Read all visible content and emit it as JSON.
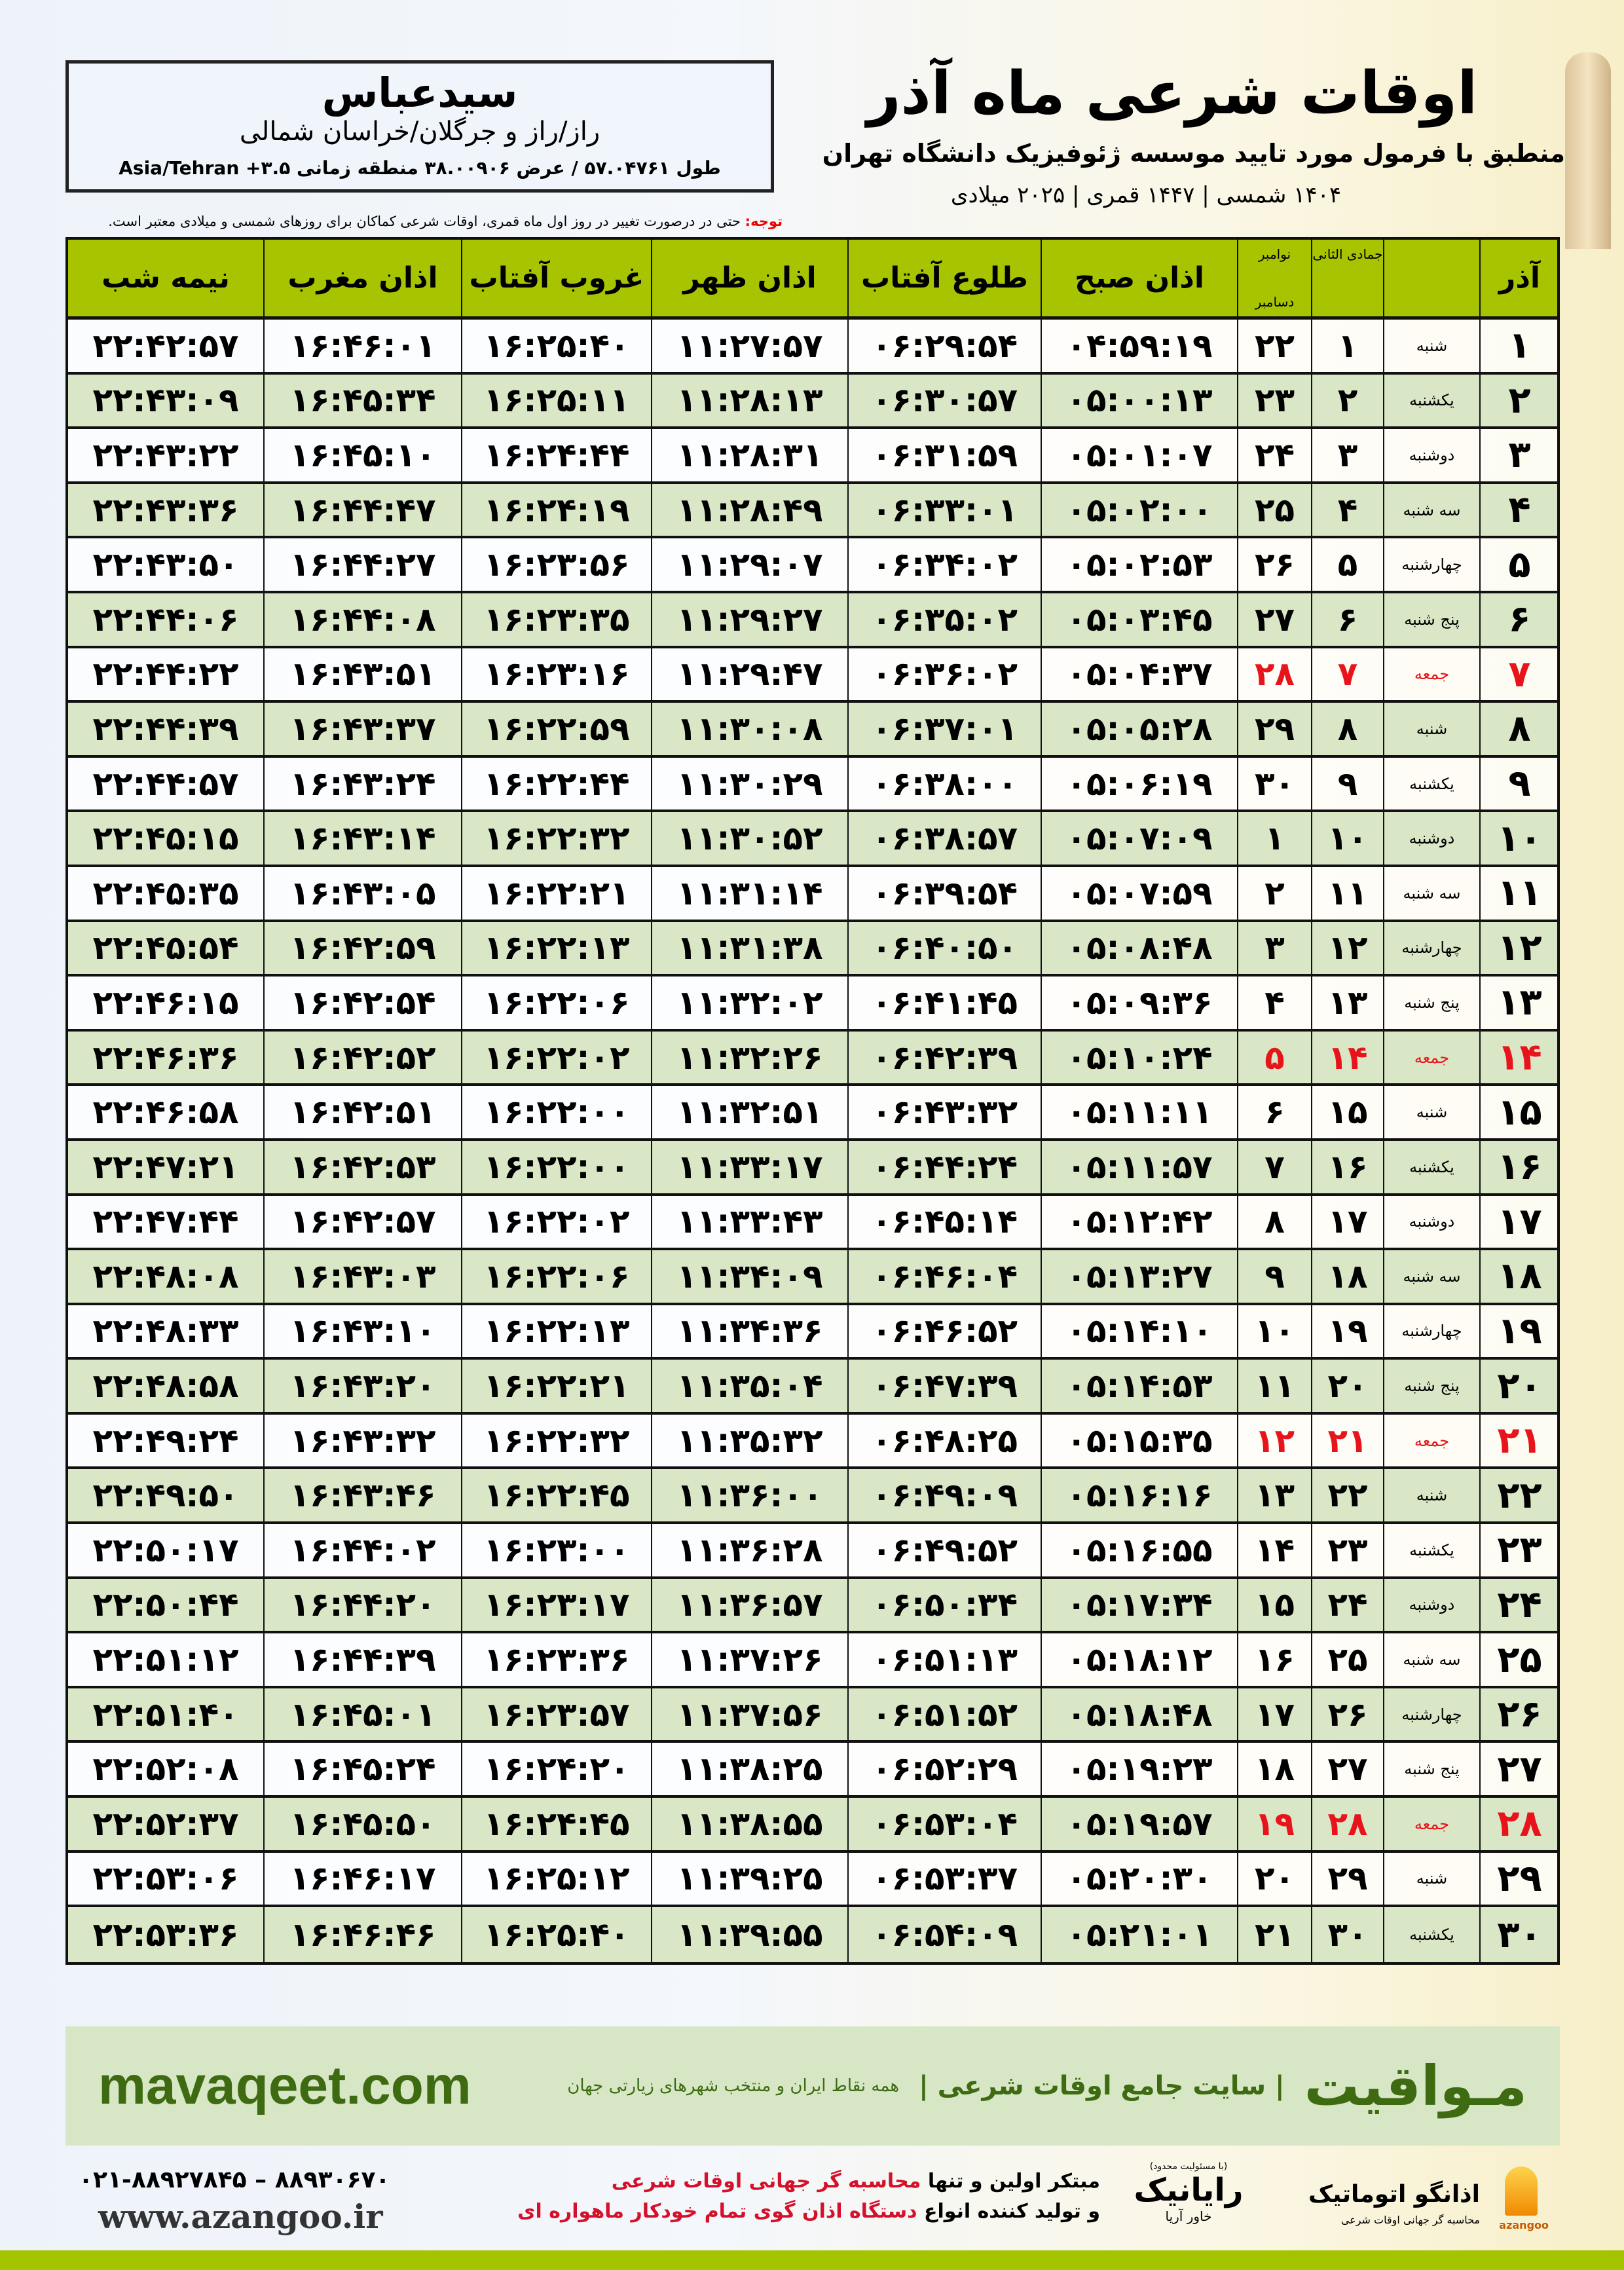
{
  "header": {
    "title": "اوقات شرعی ماه آذر",
    "subtitle": "منطبق با فرمول مورد تایید موسسه ژئوفیزیک دانشگاه تهران",
    "years": "۱۴۰۴ شمسی | ۱۴۴۷ قمری | ۲۰۲۵ میلادی"
  },
  "location": {
    "city": "سیدعباس",
    "region": "راز/راز و جرگلان/خراسان شمالی",
    "coords": "طول ۵۷.۰۴۷۶۱ / عرض ۳۸.۰۰۹۰۶ منطقه زمانی ۳.۵+ Asia/Tehran"
  },
  "note": {
    "label": "توجه:",
    "text": " حتی در درصورت تغییر در روز اول ماه قمری، اوقات شرعی کماکان برای روزهای شمسی و میلادی معتبر است."
  },
  "table": {
    "headers": {
      "day": "آذر",
      "qamari": "جمادی الثانی",
      "miladi_top": "نوامبر",
      "miladi_bottom": "دسامبر",
      "fajr": "اذان صبح",
      "sunrise": "طلوع آفتاب",
      "dhuhr": "اذان ظهر",
      "sunset": "غروب آفتاب",
      "maghrib": "اذان مغرب",
      "midnight": "نیمه شب"
    },
    "friday_color": "#e8141b",
    "header_color": "#a8c400",
    "rows": [
      [
        "۱",
        "شنبه",
        "۱",
        "۲۲",
        "۰۴:۵۹:۱۹",
        "۰۶:۲۹:۵۴",
        "۱۱:۲۷:۵۷",
        "۱۶:۲۵:۴۰",
        "۱۶:۴۶:۰۱",
        "۲۲:۴۲:۵۷"
      ],
      [
        "۲",
        "یکشنبه",
        "۲",
        "۲۳",
        "۰۵:۰۰:۱۳",
        "۰۶:۳۰:۵۷",
        "۱۱:۲۸:۱۳",
        "۱۶:۲۵:۱۱",
        "۱۶:۴۵:۳۴",
        "۲۲:۴۳:۰۹"
      ],
      [
        "۳",
        "دوشنبه",
        "۳",
        "۲۴",
        "۰۵:۰۱:۰۷",
        "۰۶:۳۱:۵۹",
        "۱۱:۲۸:۳۱",
        "۱۶:۲۴:۴۴",
        "۱۶:۴۵:۱۰",
        "۲۲:۴۳:۲۲"
      ],
      [
        "۴",
        "سه شنبه",
        "۴",
        "۲۵",
        "۰۵:۰۲:۰۰",
        "۰۶:۳۳:۰۱",
        "۱۱:۲۸:۴۹",
        "۱۶:۲۴:۱۹",
        "۱۶:۴۴:۴۷",
        "۲۲:۴۳:۳۶"
      ],
      [
        "۵",
        "چهارشنبه",
        "۵",
        "۲۶",
        "۰۵:۰۲:۵۳",
        "۰۶:۳۴:۰۲",
        "۱۱:۲۹:۰۷",
        "۱۶:۲۳:۵۶",
        "۱۶:۴۴:۲۷",
        "۲۲:۴۳:۵۰"
      ],
      [
        "۶",
        "پنج شنبه",
        "۶",
        "۲۷",
        "۰۵:۰۳:۴۵",
        "۰۶:۳۵:۰۲",
        "۱۱:۲۹:۲۷",
        "۱۶:۲۳:۳۵",
        "۱۶:۴۴:۰۸",
        "۲۲:۴۴:۰۶"
      ],
      [
        "۷",
        "جمعه",
        "۷",
        "۲۸",
        "۰۵:۰۴:۳۷",
        "۰۶:۳۶:۰۲",
        "۱۱:۲۹:۴۷",
        "۱۶:۲۳:۱۶",
        "۱۶:۴۳:۵۱",
        "۲۲:۴۴:۲۲"
      ],
      [
        "۸",
        "شنبه",
        "۸",
        "۲۹",
        "۰۵:۰۵:۲۸",
        "۰۶:۳۷:۰۱",
        "۱۱:۳۰:۰۸",
        "۱۶:۲۲:۵۹",
        "۱۶:۴۳:۳۷",
        "۲۲:۴۴:۳۹"
      ],
      [
        "۹",
        "یکشنبه",
        "۹",
        "۳۰",
        "۰۵:۰۶:۱۹",
        "۰۶:۳۸:۰۰",
        "۱۱:۳۰:۲۹",
        "۱۶:۲۲:۴۴",
        "۱۶:۴۳:۲۴",
        "۲۲:۴۴:۵۷"
      ],
      [
        "۱۰",
        "دوشنبه",
        "۱۰",
        "۱",
        "۰۵:۰۷:۰۹",
        "۰۶:۳۸:۵۷",
        "۱۱:۳۰:۵۲",
        "۱۶:۲۲:۳۲",
        "۱۶:۴۳:۱۴",
        "۲۲:۴۵:۱۵"
      ],
      [
        "۱۱",
        "سه شنبه",
        "۱۱",
        "۲",
        "۰۵:۰۷:۵۹",
        "۰۶:۳۹:۵۴",
        "۱۱:۳۱:۱۴",
        "۱۶:۲۲:۲۱",
        "۱۶:۴۳:۰۵",
        "۲۲:۴۵:۳۵"
      ],
      [
        "۱۲",
        "چهارشنبه",
        "۱۲",
        "۳",
        "۰۵:۰۸:۴۸",
        "۰۶:۴۰:۵۰",
        "۱۱:۳۱:۳۸",
        "۱۶:۲۲:۱۳",
        "۱۶:۴۲:۵۹",
        "۲۲:۴۵:۵۴"
      ],
      [
        "۱۳",
        "پنج شنبه",
        "۱۳",
        "۴",
        "۰۵:۰۹:۳۶",
        "۰۶:۴۱:۴۵",
        "۱۱:۳۲:۰۲",
        "۱۶:۲۲:۰۶",
        "۱۶:۴۲:۵۴",
        "۲۲:۴۶:۱۵"
      ],
      [
        "۱۴",
        "جمعه",
        "۱۴",
        "۵",
        "۰۵:۱۰:۲۴",
        "۰۶:۴۲:۳۹",
        "۱۱:۳۲:۲۶",
        "۱۶:۲۲:۰۲",
        "۱۶:۴۲:۵۲",
        "۲۲:۴۶:۳۶"
      ],
      [
        "۱۵",
        "شنبه",
        "۱۵",
        "۶",
        "۰۵:۱۱:۱۱",
        "۰۶:۴۳:۳۲",
        "۱۱:۳۲:۵۱",
        "۱۶:۲۲:۰۰",
        "۱۶:۴۲:۵۱",
        "۲۲:۴۶:۵۸"
      ],
      [
        "۱۶",
        "یکشنبه",
        "۱۶",
        "۷",
        "۰۵:۱۱:۵۷",
        "۰۶:۴۴:۲۴",
        "۱۱:۳۳:۱۷",
        "۱۶:۲۲:۰۰",
        "۱۶:۴۲:۵۳",
        "۲۲:۴۷:۲۱"
      ],
      [
        "۱۷",
        "دوشنبه",
        "۱۷",
        "۸",
        "۰۵:۱۲:۴۲",
        "۰۶:۴۵:۱۴",
        "۱۱:۳۳:۴۳",
        "۱۶:۲۲:۰۲",
        "۱۶:۴۲:۵۷",
        "۲۲:۴۷:۴۴"
      ],
      [
        "۱۸",
        "سه شنبه",
        "۱۸",
        "۹",
        "۰۵:۱۳:۲۷",
        "۰۶:۴۶:۰۴",
        "۱۱:۳۴:۰۹",
        "۱۶:۲۲:۰۶",
        "۱۶:۴۳:۰۳",
        "۲۲:۴۸:۰۸"
      ],
      [
        "۱۹",
        "چهارشنبه",
        "۱۹",
        "۱۰",
        "۰۵:۱۴:۱۰",
        "۰۶:۴۶:۵۲",
        "۱۱:۳۴:۳۶",
        "۱۶:۲۲:۱۳",
        "۱۶:۴۳:۱۰",
        "۲۲:۴۸:۳۳"
      ],
      [
        "۲۰",
        "پنج شنبه",
        "۲۰",
        "۱۱",
        "۰۵:۱۴:۵۳",
        "۰۶:۴۷:۳۹",
        "۱۱:۳۵:۰۴",
        "۱۶:۲۲:۲۱",
        "۱۶:۴۳:۲۰",
        "۲۲:۴۸:۵۸"
      ],
      [
        "۲۱",
        "جمعه",
        "۲۱",
        "۱۲",
        "۰۵:۱۵:۳۵",
        "۰۶:۴۸:۲۵",
        "۱۱:۳۵:۳۲",
        "۱۶:۲۲:۳۲",
        "۱۶:۴۳:۳۲",
        "۲۲:۴۹:۲۴"
      ],
      [
        "۲۲",
        "شنبه",
        "۲۲",
        "۱۳",
        "۰۵:۱۶:۱۶",
        "۰۶:۴۹:۰۹",
        "۱۱:۳۶:۰۰",
        "۱۶:۲۲:۴۵",
        "۱۶:۴۳:۴۶",
        "۲۲:۴۹:۵۰"
      ],
      [
        "۲۳",
        "یکشنبه",
        "۲۳",
        "۱۴",
        "۰۵:۱۶:۵۵",
        "۰۶:۴۹:۵۲",
        "۱۱:۳۶:۲۸",
        "۱۶:۲۳:۰۰",
        "۱۶:۴۴:۰۲",
        "۲۲:۵۰:۱۷"
      ],
      [
        "۲۴",
        "دوشنبه",
        "۲۴",
        "۱۵",
        "۰۵:۱۷:۳۴",
        "۰۶:۵۰:۳۴",
        "۱۱:۳۶:۵۷",
        "۱۶:۲۳:۱۷",
        "۱۶:۴۴:۲۰",
        "۲۲:۵۰:۴۴"
      ],
      [
        "۲۵",
        "سه شنبه",
        "۲۵",
        "۱۶",
        "۰۵:۱۸:۱۲",
        "۰۶:۵۱:۱۳",
        "۱۱:۳۷:۲۶",
        "۱۶:۲۳:۳۶",
        "۱۶:۴۴:۳۹",
        "۲۲:۵۱:۱۲"
      ],
      [
        "۲۶",
        "چهارشنبه",
        "۲۶",
        "۱۷",
        "۰۵:۱۸:۴۸",
        "۰۶:۵۱:۵۲",
        "۱۱:۳۷:۵۶",
        "۱۶:۲۳:۵۷",
        "۱۶:۴۵:۰۱",
        "۲۲:۵۱:۴۰"
      ],
      [
        "۲۷",
        "پنج شنبه",
        "۲۷",
        "۱۸",
        "۰۵:۱۹:۲۳",
        "۰۶:۵۲:۲۹",
        "۱۱:۳۸:۲۵",
        "۱۶:۲۴:۲۰",
        "۱۶:۴۵:۲۴",
        "۲۲:۵۲:۰۸"
      ],
      [
        "۲۸",
        "جمعه",
        "۲۸",
        "۱۹",
        "۰۵:۱۹:۵۷",
        "۰۶:۵۳:۰۴",
        "۱۱:۳۸:۵۵",
        "۱۶:۲۴:۴۵",
        "۱۶:۴۵:۵۰",
        "۲۲:۵۲:۳۷"
      ],
      [
        "۲۹",
        "شنبه",
        "۲۹",
        "۲۰",
        "۰۵:۲۰:۳۰",
        "۰۶:۵۳:۳۷",
        "۱۱:۳۹:۲۵",
        "۱۶:۲۵:۱۲",
        "۱۶:۴۶:۱۷",
        "۲۲:۵۳:۰۶"
      ],
      [
        "۳۰",
        "یکشنبه",
        "۳۰",
        "۲۱",
        "۰۵:۲۱:۰۱",
        "۰۶:۵۴:۰۹",
        "۱۱:۳۹:۵۵",
        "۱۶:۲۵:۴۰",
        "۱۶:۴۶:۴۶",
        "۲۲:۵۳:۳۶"
      ]
    ]
  },
  "footer": {
    "brand": "مـواقیت",
    "tagline": "| سایت جامع اوقات شرعی |",
    "tagline2": "همه نقاط ایران و منتخب شهرهای زیارتی جهان",
    "site": "mavaqeet.com",
    "phone": "۰۲۱-۸۸۹۲۷۸۴۵ – ۸۸۹۳۰۶۷۰",
    "web": "www.azangoo.ir",
    "promo_line1_a": "مبتکر اولین و تنها ",
    "promo_line1_b": "محاسبه گر جهانی اوقات شرعی",
    "promo_line2_a": "و تولید کننده انواع ",
    "promo_line2_b": "دستگاه اذان گوی تمام خودکار ماهواره ای",
    "rayanik_note": "(با مسئولیت محدود)",
    "rayanik_name": "رایانیک",
    "rayanik_sub": "خاور آریا",
    "azangoo_name": "اذانگو اتوماتیک",
    "azangoo_sub": "محاسبه گر جهانی اوقات شرعی",
    "azangoo_en": "azangoo",
    "accent_color": "#3e6b12"
  }
}
